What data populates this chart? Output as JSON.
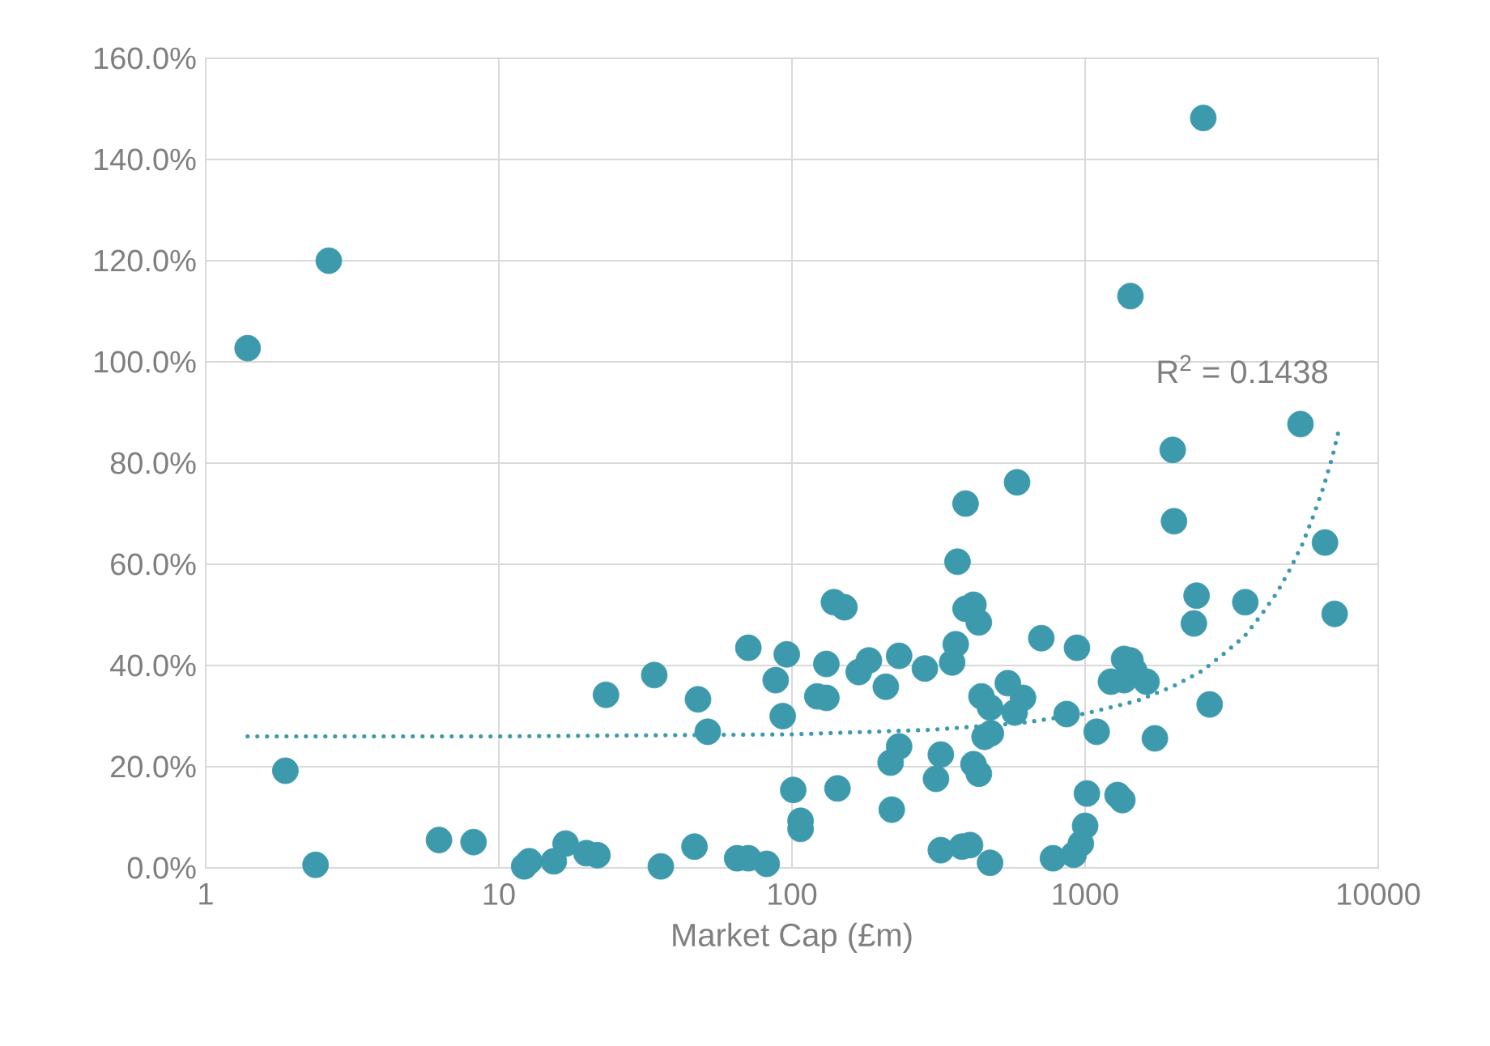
{
  "chart_data": {
    "type": "scatter",
    "xlabel": "Market Cap (£m)",
    "log": "x",
    "grid": true,
    "marker": "circle",
    "xlim": [
      1,
      10000
    ],
    "xticks": [
      1,
      10,
      100,
      1000,
      10000
    ],
    "ylim": [
      0,
      160
    ],
    "yticks": [
      {
        "value": 0,
        "label": "0.0%"
      },
      {
        "value": 20,
        "label": "20.0%"
      },
      {
        "value": 40,
        "label": "40.0%"
      },
      {
        "value": 60,
        "label": "60.0%"
      },
      {
        "value": 80,
        "label": "80.0%"
      },
      {
        "value": 100,
        "label": "100.0%"
      },
      {
        "value": 120,
        "label": "120.0%"
      },
      {
        "value": 140,
        "label": "140.0%"
      },
      {
        "value": 160,
        "label": "160.0%"
      }
    ],
    "annotations": [
      "R$^{2}$ = 0.1438"
    ],
    "series": [
      {
        "color": "#3d9aad",
        "x": [
          1.39,
          2.63,
          1.87,
          2.37,
          6.25,
          8.2,
          12.2,
          12.7,
          15.4,
          16.9,
          19.9,
          21.7,
          23.2,
          33.9,
          35.7,
          47.8,
          46.5,
          51.6,
          65,
          71,
          71,
          82,
          88,
          96,
          93,
          101,
          107,
          107,
          122,
          131,
          131,
          139,
          151,
          143,
          169,
          183,
          209,
          217,
          219,
          232,
          232,
          284,
          310,
          322,
          322,
          352,
          362,
          367,
          380,
          405,
          391,
          416,
          434,
          391,
          416,
          434,
          443,
          474,
          454,
          477,
          474,
          586,
          545,
          575,
          614,
          709,
          777,
          938,
          865,
          914,
          967,
          1000,
          1014,
          1095,
          1225,
          1290,
          1340,
          1358,
          1428,
          1358,
          1470,
          1620,
          1428,
          1730,
          1990,
          2010,
          2400,
          2350,
          2530,
          2660,
          3520,
          5430,
          6580,
          7100
        ],
        "values": [
          102.7,
          120,
          19.2,
          0.6,
          5.5,
          5.1,
          0.3,
          1.3,
          1.3,
          4.8,
          2.9,
          2.5,
          34.2,
          38.1,
          0.3,
          33.3,
          4.2,
          26.9,
          1.9,
          1.9,
          43.5,
          0.8,
          37.1,
          42.2,
          30,
          15.4,
          9.3,
          7.7,
          33.9,
          33.6,
          40.3,
          52.5,
          51.5,
          15.7,
          38.7,
          41,
          35.8,
          20.8,
          11.5,
          24,
          41.9,
          39.4,
          17.6,
          22.4,
          3.5,
          40.6,
          44.2,
          60.5,
          4.2,
          4.5,
          51.2,
          52,
          48.5,
          72,
          20.5,
          18.6,
          33.9,
          31.7,
          25.9,
          26.6,
          1,
          76.2,
          36.5,
          30.7,
          33.6,
          45.4,
          1.9,
          43.5,
          30.4,
          2.6,
          4.8,
          8.3,
          14.7,
          26.9,
          36.8,
          14.4,
          13.4,
          41.3,
          41,
          37.1,
          39,
          36.8,
          113,
          25.6,
          82.6,
          68.5,
          53.8,
          48.3,
          148.2,
          32.3,
          52.5,
          87.7,
          64.3,
          50.2
        ]
      },
      {
        "type": "line",
        "color": "#3d9aad",
        "line_style": "dotted",
        "marker": "none",
        "x": [
          1.39,
          10,
          100,
          300,
          600,
          1000,
          1500,
          2000,
          2500,
          3000,
          3500,
          4000,
          4500,
          5000,
          5500,
          6000,
          6500,
          7000,
          7300
        ],
        "values": [
          26,
          26,
          26.4,
          27.3,
          28.6,
          30.5,
          33,
          35.9,
          38.9,
          42.5,
          45.8,
          50.1,
          54.3,
          59,
          63.9,
          69.5,
          75.2,
          81.6,
          86
        ]
      }
    ]
  }
}
